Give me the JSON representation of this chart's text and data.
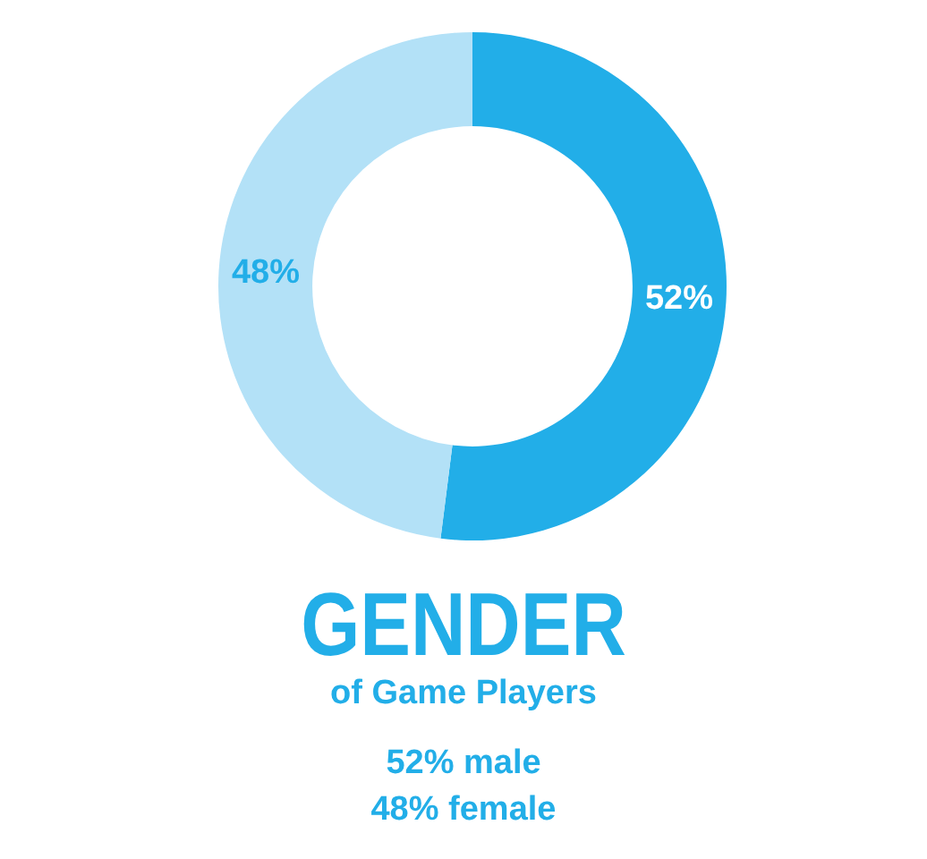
{
  "chart_data": {
    "type": "donut",
    "title": "GENDER",
    "subtitle": "of Game Players",
    "categories": [
      null,
      null
    ],
    "values": [
      52,
      48
    ],
    "colors": [
      "#22aee8",
      "#b3e1f7"
    ],
    "value_labels": [
      "52%",
      "48%"
    ],
    "annotations": [
      "52% male",
      "48% female"
    ]
  }
}
